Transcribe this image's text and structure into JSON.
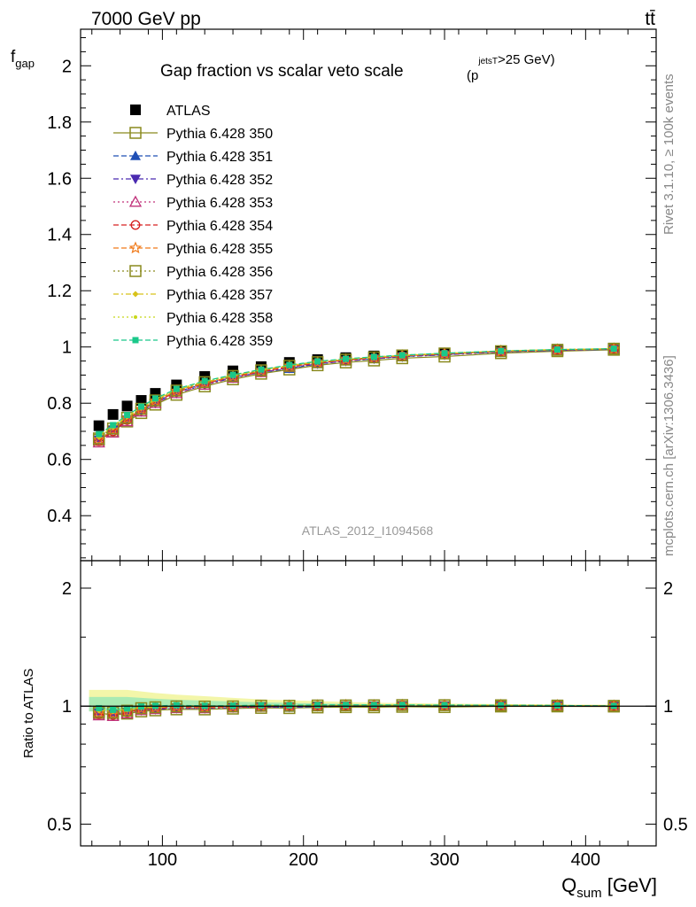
{
  "header": {
    "left": "7000 GeV pp",
    "right": "tt̄"
  },
  "side_labels": {
    "rivet": "Rivet 3.1.10, ≥ 100k events",
    "mcplots": "mcplots.cern.ch [arXiv:1306.3436]"
  },
  "colors": {
    "ATLAS": "#000000",
    "350": "#8a8a1e",
    "351": "#1f4fb5",
    "352": "#4a2ab0",
    "353": "#c0307a",
    "354": "#d62020",
    "355": "#f07a1a",
    "356": "#8a8a1e",
    "357": "#d8c21a",
    "358": "#c8d81a",
    "359": "#1ac88a"
  },
  "chart_data": [
    {
      "type": "line",
      "title": "Gap fraction vs scalar veto scale",
      "title_suffix": {
        "base": "(p",
        "sup": "jets",
        "sub": "T",
        "tail": ">25 GeV)"
      },
      "ylabel": {
        "main": "f",
        "sub": "gap"
      },
      "watermark": "ATLAS_2012_I1094568",
      "xlim": [
        42,
        450
      ],
      "ylim": [
        0.24,
        2.13
      ],
      "yticks": [
        0.4,
        0.6,
        0.8,
        1,
        1.2,
        1.4,
        1.6,
        1.8,
        2
      ],
      "ytick_labels": [
        "0.4",
        "0.6",
        "0.8",
        "1",
        "1.2",
        "1.4",
        "1.6",
        "1.8",
        "2"
      ],
      "legend_placement": "top-left",
      "x": [
        55,
        65,
        75,
        85,
        95,
        110,
        130,
        150,
        170,
        190,
        210,
        230,
        250,
        270,
        300,
        340,
        380,
        420
      ],
      "series": [
        {
          "name": "ATLAS",
          "marker": "square-filled",
          "dash": "none",
          "values": [
            0.72,
            0.76,
            0.79,
            0.81,
            0.835,
            0.865,
            0.895,
            0.915,
            0.93,
            0.945,
            0.955,
            0.962,
            0.968,
            0.972,
            0.978,
            0.985,
            0.99,
            0.994
          ]
        },
        {
          "name": "Pythia 6.428 350",
          "marker": "square-open",
          "dash": "solid",
          "values": [
            0.67,
            0.7,
            0.735,
            0.765,
            0.795,
            0.83,
            0.86,
            0.885,
            0.905,
            0.92,
            0.935,
            0.945,
            0.952,
            0.96,
            0.966,
            0.978,
            0.985,
            0.99
          ]
        },
        {
          "name": "Pythia 6.428 351",
          "marker": "triangle-up-filled",
          "dash": "dashed",
          "values": [
            0.68,
            0.71,
            0.745,
            0.775,
            0.805,
            0.84,
            0.87,
            0.892,
            0.91,
            0.923,
            0.94,
            0.95,
            0.958,
            0.966,
            0.973,
            0.983,
            0.988,
            0.992
          ]
        },
        {
          "name": "Pythia 6.428 352",
          "marker": "triangle-down-filled",
          "dash": "dashdot",
          "values": [
            0.67,
            0.705,
            0.74,
            0.77,
            0.8,
            0.835,
            0.865,
            0.89,
            0.91,
            0.925,
            0.94,
            0.95,
            0.958,
            0.965,
            0.972,
            0.982,
            0.988,
            0.992
          ]
        },
        {
          "name": "Pythia 6.428 353",
          "marker": "triangle-up-open",
          "dash": "dotted",
          "values": [
            0.66,
            0.695,
            0.735,
            0.77,
            0.8,
            0.835,
            0.865,
            0.89,
            0.91,
            0.928,
            0.942,
            0.952,
            0.96,
            0.967,
            0.974,
            0.983,
            0.989,
            0.993
          ]
        },
        {
          "name": "Pythia 6.428 354",
          "marker": "circle-open",
          "dash": "dashed",
          "values": [
            0.665,
            0.7,
            0.74,
            0.775,
            0.805,
            0.84,
            0.87,
            0.893,
            0.912,
            0.93,
            0.943,
            0.953,
            0.96,
            0.968,
            0.975,
            0.984,
            0.99,
            0.993
          ]
        },
        {
          "name": "Pythia 6.428 355",
          "marker": "star-open",
          "dash": "dashed",
          "values": [
            0.67,
            0.705,
            0.745,
            0.778,
            0.808,
            0.843,
            0.872,
            0.895,
            0.915,
            0.932,
            0.945,
            0.955,
            0.962,
            0.969,
            0.976,
            0.985,
            0.99,
            0.993
          ]
        },
        {
          "name": "Pythia 6.428 356",
          "marker": "square-open",
          "dash": "dotted",
          "values": [
            0.675,
            0.71,
            0.748,
            0.78,
            0.81,
            0.845,
            0.875,
            0.897,
            0.917,
            0.933,
            0.946,
            0.955,
            0.963,
            0.97,
            0.977,
            0.985,
            0.99,
            0.994
          ]
        },
        {
          "name": "Pythia 6.428 357",
          "marker": "diamond-small",
          "dash": "dashdot",
          "values": [
            0.68,
            0.715,
            0.752,
            0.783,
            0.812,
            0.847,
            0.876,
            0.898,
            0.918,
            0.934,
            0.947,
            0.956,
            0.964,
            0.97,
            0.977,
            0.986,
            0.991,
            0.994
          ]
        },
        {
          "name": "Pythia 6.428 358",
          "marker": "dot-small",
          "dash": "dotted",
          "values": [
            0.685,
            0.72,
            0.755,
            0.786,
            0.815,
            0.849,
            0.878,
            0.9,
            0.919,
            0.935,
            0.948,
            0.957,
            0.964,
            0.971,
            0.978,
            0.986,
            0.991,
            0.994
          ]
        },
        {
          "name": "Pythia 6.428 359",
          "marker": "square-small-filled",
          "dash": "dashed",
          "values": [
            0.69,
            0.722,
            0.758,
            0.788,
            0.817,
            0.851,
            0.879,
            0.901,
            0.92,
            0.936,
            0.949,
            0.958,
            0.965,
            0.971,
            0.978,
            0.986,
            0.991,
            0.994
          ]
        }
      ]
    },
    {
      "type": "line",
      "title": "",
      "ylabel": "Ratio to ATLAS",
      "xlabel": {
        "main": "Q",
        "sub": "sum",
        "unit": " [GeV]"
      },
      "xlim": [
        42,
        450
      ],
      "ylim": [
        0.44,
        2.35
      ],
      "yscale": "log",
      "xticks": [
        100,
        200,
        300,
        400
      ],
      "xtick_labels": [
        "100",
        "200",
        "300",
        "400"
      ],
      "yticks": [
        0.5,
        1,
        2
      ],
      "ytick_labels": [
        "0.5",
        "1",
        "2"
      ],
      "reference": 1,
      "band": {
        "upper": [
          1.1,
          1.1,
          1.1,
          1.09,
          1.08,
          1.07,
          1.06,
          1.05,
          1.04,
          1.035,
          1.03,
          1.025,
          1.02,
          1.018,
          1.015,
          1.012,
          1.01,
          1.008
        ],
        "lower": [
          0.97,
          0.97,
          0.975,
          0.978,
          0.98,
          0.982,
          0.985,
          0.988,
          0.99,
          0.99,
          0.992,
          0.993,
          0.994,
          0.995,
          0.996,
          0.997,
          0.998,
          0.998
        ]
      }
    }
  ]
}
